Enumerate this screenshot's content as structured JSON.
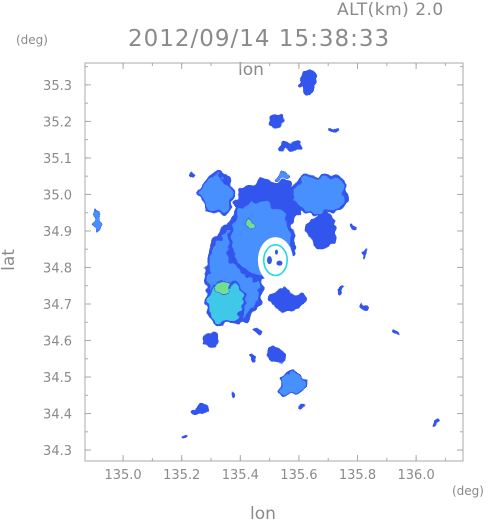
{
  "header": {
    "altitude_label": "ALT(km) 2.0",
    "timestamp": "2012/09/14 15:38:33"
  },
  "axes": {
    "x_unit": "(deg)",
    "y_unit": "(deg)",
    "x_label": "lon",
    "x_label_top": "lon",
    "y_label": "lat",
    "x_range": [
      134.87,
      136.16
    ],
    "y_range": [
      34.27,
      35.36
    ],
    "x_ticks": [
      {
        "value": 135.0,
        "label": "135.0"
      },
      {
        "value": 135.2,
        "label": "135.2"
      },
      {
        "value": 135.4,
        "label": "135.4"
      },
      {
        "value": 135.6,
        "label": "135.6"
      },
      {
        "value": 135.8,
        "label": "135.8"
      },
      {
        "value": 136.0,
        "label": "136.0"
      }
    ],
    "y_ticks": [
      {
        "value": 34.3,
        "label": "34.3"
      },
      {
        "value": 34.4,
        "label": "34.4"
      },
      {
        "value": 34.5,
        "label": "34.5"
      },
      {
        "value": 34.6,
        "label": "34.6"
      },
      {
        "value": 34.7,
        "label": "34.7"
      },
      {
        "value": 34.8,
        "label": "34.8"
      },
      {
        "value": 34.9,
        "label": "34.9"
      },
      {
        "value": 35.0,
        "label": "35.0"
      },
      {
        "value": 35.1,
        "label": "35.1"
      },
      {
        "value": 35.2,
        "label": "35.2"
      },
      {
        "value": 35.3,
        "label": "35.3"
      }
    ]
  },
  "radar": {
    "center_lon": 135.52,
    "center_lat": 34.82,
    "blank_radius_deg": 0.06,
    "ring_radius_deg": 0.04,
    "colors": {
      "weak": "#3355ee",
      "moderate": "#4a90ff",
      "strong": "#40c8e8",
      "peak": "#70e090",
      "frame": "#aaaaaa",
      "ring": "#20d8e8"
    },
    "echoes": [
      {
        "name": "main-echo-west",
        "lon": 135.38,
        "lat": 34.78,
        "rlon": 0.09,
        "rlat": 0.12,
        "level": "moderate"
      },
      {
        "name": "main-echo-center",
        "lon": 135.47,
        "lat": 34.88,
        "rlon": 0.1,
        "rlat": 0.1,
        "level": "moderate"
      },
      {
        "name": "main-echo-north",
        "lon": 135.5,
        "lat": 34.98,
        "rlon": 0.12,
        "rlat": 0.06,
        "level": "weak"
      },
      {
        "name": "echo-northwest",
        "lon": 135.32,
        "lat": 35.0,
        "rlon": 0.05,
        "rlat": 0.05,
        "level": "moderate"
      },
      {
        "name": "echo-northeast",
        "lon": 135.67,
        "lat": 35.0,
        "rlon": 0.09,
        "rlat": 0.05,
        "level": "moderate"
      },
      {
        "name": "echo-east",
        "lon": 135.68,
        "lat": 34.9,
        "rlon": 0.05,
        "rlat": 0.05,
        "level": "weak"
      },
      {
        "name": "echo-south-core",
        "lon": 135.35,
        "lat": 34.7,
        "rlon": 0.06,
        "rlat": 0.05,
        "level": "strong"
      },
      {
        "name": "echo-southeast",
        "lon": 135.56,
        "lat": 34.71,
        "rlon": 0.06,
        "rlat": 0.03,
        "level": "weak"
      },
      {
        "name": "echo-south",
        "lon": 135.58,
        "lat": 34.48,
        "rlon": 0.04,
        "rlat": 0.03,
        "level": "moderate"
      },
      {
        "name": "echo-far-south",
        "lon": 135.52,
        "lat": 34.56,
        "rlon": 0.03,
        "rlat": 0.02,
        "level": "weak"
      },
      {
        "name": "echo-west-edge",
        "lon": 134.91,
        "lat": 34.93,
        "rlon": 0.008,
        "rlat": 0.025,
        "level": "moderate"
      },
      {
        "name": "echo-east-small",
        "lon": 135.82,
        "lat": 34.69,
        "rlon": 0.015,
        "rlat": 0.012,
        "level": "weak"
      },
      {
        "name": "echo-north-far",
        "lon": 135.63,
        "lat": 35.3,
        "rlon": 0.025,
        "rlat": 0.04,
        "level": "weak"
      },
      {
        "name": "echo-north-line",
        "lon": 135.52,
        "lat": 35.2,
        "rlon": 0.02,
        "rlat": 0.02,
        "level": "weak"
      },
      {
        "name": "echo-north-mid",
        "lon": 135.58,
        "lat": 35.13,
        "rlon": 0.04,
        "rlat": 0.012,
        "level": "weak"
      },
      {
        "name": "echo-core-peak",
        "lon": 135.43,
        "lat": 34.92,
        "rlon": 0.012,
        "rlat": 0.015,
        "level": "peak"
      },
      {
        "name": "echo-core-peak-2",
        "lon": 135.34,
        "lat": 34.74,
        "rlon": 0.018,
        "rlat": 0.02,
        "level": "peak"
      }
    ],
    "fragments": [
      {
        "lon": 135.26,
        "lat": 34.41,
        "rlon": 0.03,
        "rlat": 0.008,
        "level": "weak"
      },
      {
        "lon": 135.2,
        "lat": 34.34,
        "rlon": 0.006,
        "rlat": 0.006,
        "level": "weak"
      },
      {
        "lon": 135.3,
        "lat": 34.6,
        "rlon": 0.03,
        "rlat": 0.02,
        "level": "weak"
      },
      {
        "lon": 135.44,
        "lat": 34.55,
        "rlon": 0.02,
        "rlat": 0.008,
        "level": "weak"
      },
      {
        "lon": 135.82,
        "lat": 34.84,
        "rlon": 0.01,
        "rlat": 0.008,
        "level": "weak"
      },
      {
        "lon": 135.78,
        "lat": 34.91,
        "rlon": 0.01,
        "rlat": 0.008,
        "level": "weak"
      },
      {
        "lon": 135.93,
        "lat": 34.62,
        "rlon": 0.006,
        "rlat": 0.005,
        "level": "weak"
      },
      {
        "lon": 136.07,
        "lat": 34.37,
        "rlon": 0.008,
        "rlat": 0.005,
        "level": "weak"
      },
      {
        "lon": 135.72,
        "lat": 35.18,
        "rlon": 0.015,
        "rlat": 0.006,
        "level": "weak"
      },
      {
        "lon": 135.61,
        "lat": 34.42,
        "rlon": 0.01,
        "rlat": 0.008,
        "level": "weak"
      },
      {
        "lon": 135.37,
        "lat": 34.45,
        "rlon": 0.008,
        "rlat": 0.006,
        "level": "weak"
      },
      {
        "lon": 135.46,
        "lat": 34.63,
        "rlon": 0.012,
        "rlat": 0.008,
        "level": "weak"
      },
      {
        "lon": 135.74,
        "lat": 34.74,
        "rlon": 0.01,
        "rlat": 0.006,
        "level": "weak"
      },
      {
        "lon": 135.24,
        "lat": 35.05,
        "rlon": 0.01,
        "rlat": 0.006,
        "level": "weak"
      },
      {
        "lon": 135.55,
        "lat": 35.05,
        "rlon": 0.02,
        "rlat": 0.01,
        "level": "moderate"
      }
    ]
  }
}
